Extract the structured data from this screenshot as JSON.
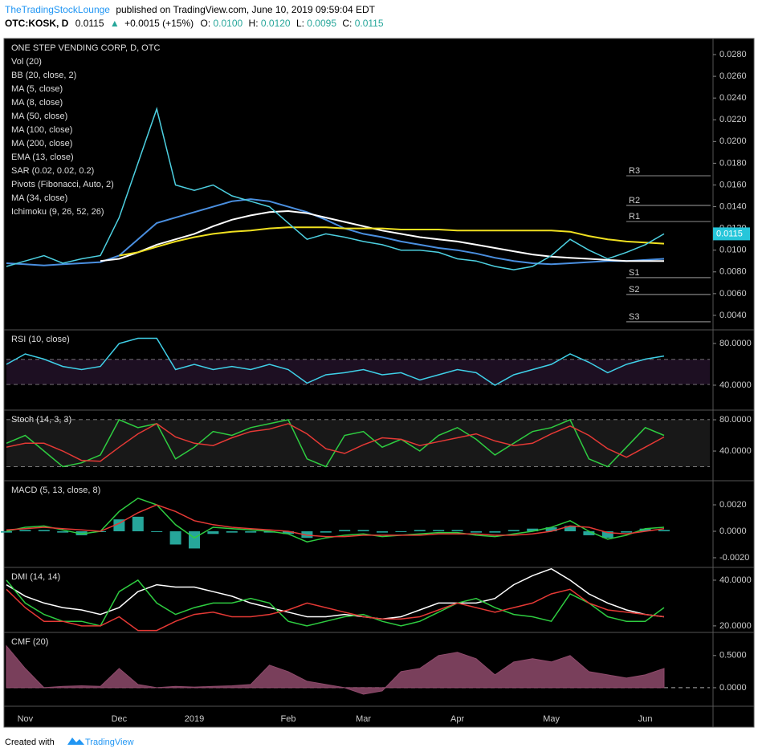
{
  "header": {
    "author": "TheTradingStockLounge",
    "published": "published on TradingView.com, June 10, 2019 09:59:04 EDT",
    "symbol": "OTC:KOSK, D",
    "price": "0.0115",
    "arrow": "▲",
    "change": "+0.0015 (+15%)",
    "o_label": "O:",
    "o": "0.0100",
    "h_label": "H:",
    "h": "0.0120",
    "l_label": "L:",
    "l": "0.0095",
    "c_label": "C:",
    "c": "0.0115"
  },
  "footer": {
    "created": "Created with",
    "brand": "TradingView"
  },
  "chart_data": [
    {
      "type": "price",
      "title": "ONE STEP VENDING CORP, D, OTC",
      "ylim": [
        0.00274,
        0.02933
      ],
      "yticks": [
        {
          "value": 0.004,
          "label": "0.0040"
        },
        {
          "value": 0.006,
          "label": "0.0060"
        },
        {
          "value": 0.008,
          "label": "0.0080"
        },
        {
          "value": 0.01,
          "label": "0.0100"
        },
        {
          "value": 0.012,
          "label": "0.0120"
        },
        {
          "value": 0.014,
          "label": "0.0140"
        },
        {
          "value": 0.016,
          "label": "0.0160"
        },
        {
          "value": 0.018,
          "label": "0.0180"
        },
        {
          "value": 0.02,
          "label": "0.0200"
        },
        {
          "value": 0.022,
          "label": "0.0220"
        },
        {
          "value": 0.024,
          "label": "0.0240"
        },
        {
          "value": 0.026,
          "label": "0.0260"
        },
        {
          "value": 0.028,
          "label": "0.0280"
        }
      ],
      "indicators": [
        {
          "name": "Vol (20)"
        },
        {
          "name": "BB (20, close, 2)"
        },
        {
          "name": "MA (5, close)"
        },
        {
          "name": "MA (8, close)"
        },
        {
          "name": "MA (50, close)",
          "color": "#4a8fe0",
          "values": [
            0.0088,
            0.0087,
            0.0086,
            0.0087,
            0.0088,
            0.0089,
            0.0095,
            0.011,
            0.0125,
            0.013,
            0.0135,
            0.014,
            0.0145,
            0.0147,
            0.0145,
            0.014,
            0.0135,
            0.0128,
            0.012,
            0.0115,
            0.0112,
            0.0108,
            0.0105,
            0.0102,
            0.01,
            0.0097,
            0.0093,
            0.009,
            0.0088,
            0.0087,
            0.0088,
            0.0089,
            0.009,
            0.009,
            0.0091,
            0.0092
          ]
        },
        {
          "name": "MA (100, close)",
          "color": "#ffffff",
          "values": [
            null,
            null,
            null,
            null,
            null,
            0.009,
            0.0092,
            0.0098,
            0.0105,
            0.011,
            0.0115,
            0.0122,
            0.0128,
            0.0132,
            0.0135,
            0.0136,
            0.0134,
            0.013,
            0.0126,
            0.0122,
            0.0118,
            0.0115,
            0.0112,
            0.011,
            0.0108,
            0.0105,
            0.0102,
            0.0099,
            0.0096,
            0.0094,
            0.0093,
            0.0092,
            0.0091,
            0.009,
            0.009,
            0.009
          ]
        },
        {
          "name": "MA (200, close)",
          "color": "#f0e020",
          "values": [
            null,
            null,
            null,
            null,
            null,
            null,
            0.0095,
            0.0098,
            0.0103,
            0.0108,
            0.0112,
            0.0115,
            0.0117,
            0.0118,
            0.012,
            0.0121,
            0.0121,
            0.0121,
            0.012,
            0.012,
            0.012,
            0.0119,
            0.0119,
            0.0119,
            0.0118,
            0.0118,
            0.0118,
            0.0118,
            0.0118,
            0.0118,
            0.0117,
            0.0113,
            0.011,
            0.0108,
            0.0107,
            0.0106
          ]
        },
        {
          "name": "EMA (13, close)"
        },
        {
          "name": "SAR (0.02, 0.02, 0.2)"
        },
        {
          "name": "Pivots (Fibonacci, Auto, 2)"
        },
        {
          "name": "MA (34, close)"
        },
        {
          "name": "Ichimoku (9, 26, 52, 26)"
        }
      ],
      "price": {
        "color": "#4dd0e1",
        "values": [
          0.0085,
          0.009,
          0.0095,
          0.0088,
          0.0092,
          0.0095,
          0.013,
          0.018,
          0.023,
          0.016,
          0.0155,
          0.016,
          0.015,
          0.0145,
          0.014,
          0.0125,
          0.011,
          0.0115,
          0.0112,
          0.0108,
          0.0105,
          0.01,
          0.01,
          0.0098,
          0.0092,
          0.009,
          0.0085,
          0.0082,
          0.0085,
          0.0095,
          0.011,
          0.01,
          0.0092,
          0.0098,
          0.0105,
          0.0115
        ]
      },
      "last_price": 0.0115,
      "last_price_color": "#26c6da",
      "pivots": {
        "labels": [
          "R3",
          "R2",
          "R1",
          "S1",
          "S2",
          "S3"
        ],
        "values": [
          0.01685,
          0.01412,
          0.01264,
          0.00747,
          0.00592,
          0.00341
        ]
      }
    },
    {
      "type": "line",
      "title": "RSI (10, close)",
      "ylim": [
        16.9,
        91.5
      ],
      "yticks": [
        {
          "value": 40,
          "label": "40.0000"
        },
        {
          "value": 80,
          "label": "80.0000"
        }
      ],
      "bands": [
        64.6,
        40.8
      ],
      "series": [
        {
          "color": "#3fd0e8",
          "values": [
            60,
            70,
            65,
            58,
            55,
            58,
            80,
            85,
            85,
            55,
            60,
            55,
            58,
            55,
            60,
            55,
            42,
            50,
            52,
            55,
            50,
            52,
            45,
            50,
            55,
            52,
            40,
            50,
            55,
            60,
            70,
            62,
            52,
            60,
            65,
            68
          ]
        }
      ]
    },
    {
      "type": "line",
      "title": "Stoch (14, 3, 3)",
      "ylim": [
        3.1,
        90.3
      ],
      "yticks": [
        {
          "value": 40,
          "label": "40.0000"
        },
        {
          "value": 80,
          "label": "80.0000"
        }
      ],
      "bands": [
        80,
        20
      ],
      "series": [
        {
          "color": "#2ecc40",
          "values": [
            50,
            60,
            40,
            20,
            25,
            35,
            80,
            70,
            75,
            30,
            45,
            65,
            60,
            70,
            75,
            80,
            30,
            20,
            60,
            65,
            45,
            55,
            40,
            60,
            70,
            55,
            35,
            50,
            65,
            70,
            80,
            30,
            20,
            45,
            70,
            60
          ]
        },
        {
          "color": "#e53935",
          "values": [
            45,
            50,
            50,
            40,
            28,
            27,
            45,
            62,
            75,
            58,
            50,
            47,
            57,
            65,
            68,
            75,
            62,
            43,
            37,
            48,
            57,
            55,
            47,
            52,
            57,
            62,
            53,
            47,
            50,
            62,
            72,
            60,
            43,
            32,
            45,
            58
          ]
        }
      ]
    },
    {
      "type": "line",
      "title": "MACD (5, 13, close, 8)",
      "ylim": [
        -0.00273,
        0.0037
      ],
      "yticks": [
        {
          "value": -0.002,
          "label": "-0.0020"
        },
        {
          "value": 0,
          "label": "0.0000"
        },
        {
          "value": 0.002,
          "label": "0.0020"
        }
      ],
      "series": [
        {
          "color": "#26a69a",
          "style": "bars",
          "values": [
            -0.0001,
            0.0001,
            0.0001,
            -0.0001,
            -0.0003,
            0,
            0.0009,
            0.0011,
            0,
            -0.001,
            -0.0013,
            -0.0002,
            -0.0001,
            -0.0001,
            -0.0001,
            -0.0002,
            -0.0005,
            -0.0001,
            0.0001,
            0.0001,
            -0.0001,
            0,
            0.0001,
            0.0001,
            0.0001,
            -0.0001,
            -0.0001,
            0.0001,
            0.0002,
            0.0003,
            0.0004,
            -0.0003,
            -0.0005,
            -0.0001,
            0.0002,
            0.0001
          ]
        },
        {
          "color": "#2ecc40",
          "values": [
            0,
            0.0003,
            0.0004,
            0.0001,
            -0.0002,
            0,
            0.0015,
            0.0025,
            0.002,
            0.0005,
            -0.0005,
            0.0003,
            0.0002,
            0.0001,
            0,
            -0.0002,
            -0.0008,
            -0.0005,
            -0.0003,
            -0.0002,
            -0.0004,
            -0.0003,
            -0.0002,
            -0.0001,
            -0.0001,
            -0.0003,
            -0.0004,
            -0.0002,
            0,
            0.0003,
            0.0008,
            0,
            -0.0006,
            -0.0003,
            0.0002,
            0.0003
          ]
        },
        {
          "color": "#e53935",
          "values": [
            0.0001,
            0.0002,
            0.0003,
            0.0002,
            0.0001,
            0,
            0.0006,
            0.0014,
            0.002,
            0.0015,
            0.0008,
            0.0005,
            0.0003,
            0.0002,
            0.0001,
            0,
            -0.0003,
            -0.0004,
            -0.0004,
            -0.0003,
            -0.0003,
            -0.0003,
            -0.0003,
            -0.0002,
            -0.0002,
            -0.0002,
            -0.0003,
            -0.0003,
            -0.0002,
            0,
            0.0004,
            0.0003,
            -0.0001,
            -0.0002,
            0,
            0.0002
          ]
        }
      ]
    },
    {
      "type": "line",
      "title": "DMI (14, 14)",
      "ylim": [
        17.5,
        44.9
      ],
      "yticks": [
        {
          "value": 20,
          "label": "20.0000"
        },
        {
          "value": 40,
          "label": "40.0000"
        }
      ],
      "series": [
        {
          "color": "#ffffff",
          "values": [
            38,
            33,
            30,
            28,
            27,
            25,
            28,
            35,
            38,
            37,
            37,
            35,
            33,
            30,
            28,
            26,
            24,
            24,
            25,
            24,
            23,
            24,
            27,
            30,
            30,
            30,
            32,
            38,
            42,
            45,
            40,
            34,
            30,
            27,
            25,
            24
          ]
        },
        {
          "color": "#2ecc40",
          "values": [
            40,
            30,
            25,
            22,
            22,
            20,
            35,
            40,
            30,
            25,
            28,
            30,
            30,
            32,
            30,
            22,
            20,
            22,
            24,
            25,
            22,
            20,
            22,
            26,
            30,
            32,
            28,
            25,
            24,
            22,
            34,
            30,
            24,
            22,
            22,
            28
          ]
        },
        {
          "color": "#e53935",
          "values": [
            36,
            28,
            22,
            22,
            20,
            20,
            24,
            18,
            18,
            22,
            25,
            26,
            24,
            24,
            25,
            27,
            30,
            28,
            26,
            24,
            23,
            23,
            24,
            27,
            30,
            28,
            26,
            28,
            30,
            34,
            36,
            30,
            27,
            26,
            25,
            24
          ]
        }
      ]
    },
    {
      "type": "area",
      "title": "CMF (20)",
      "ylim": [
        -0.2875,
        0.834
      ],
      "yticks": [
        {
          "value": 0,
          "label": "0.0000"
        },
        {
          "value": 0.5,
          "label": "0.5000"
        }
      ],
      "bands": [
        0
      ],
      "categories": [
        null,
        "Nov",
        null,
        null,
        null,
        null,
        "Dec",
        null,
        null,
        null,
        "2019",
        null,
        null,
        null,
        null,
        "Feb",
        null,
        null,
        null,
        "Mar",
        null,
        null,
        null,
        null,
        "Apr",
        null,
        null,
        null,
        null,
        "May",
        null,
        null,
        null,
        null,
        "Jun",
        null
      ],
      "series": [
        {
          "color": "#8e4a6b",
          "values": [
            0.65,
            0.3,
            0,
            0.02,
            0.03,
            0.02,
            0.3,
            0.05,
            0,
            0.02,
            0.01,
            0.02,
            0.03,
            0.05,
            0.35,
            0.25,
            0.1,
            0.05,
            0,
            -0.1,
            -0.05,
            0.25,
            0.3,
            0.5,
            0.55,
            0.45,
            0.2,
            0.4,
            0.45,
            0.4,
            0.5,
            0.25,
            0.2,
            0.15,
            0.2,
            0.3
          ]
        }
      ]
    }
  ]
}
